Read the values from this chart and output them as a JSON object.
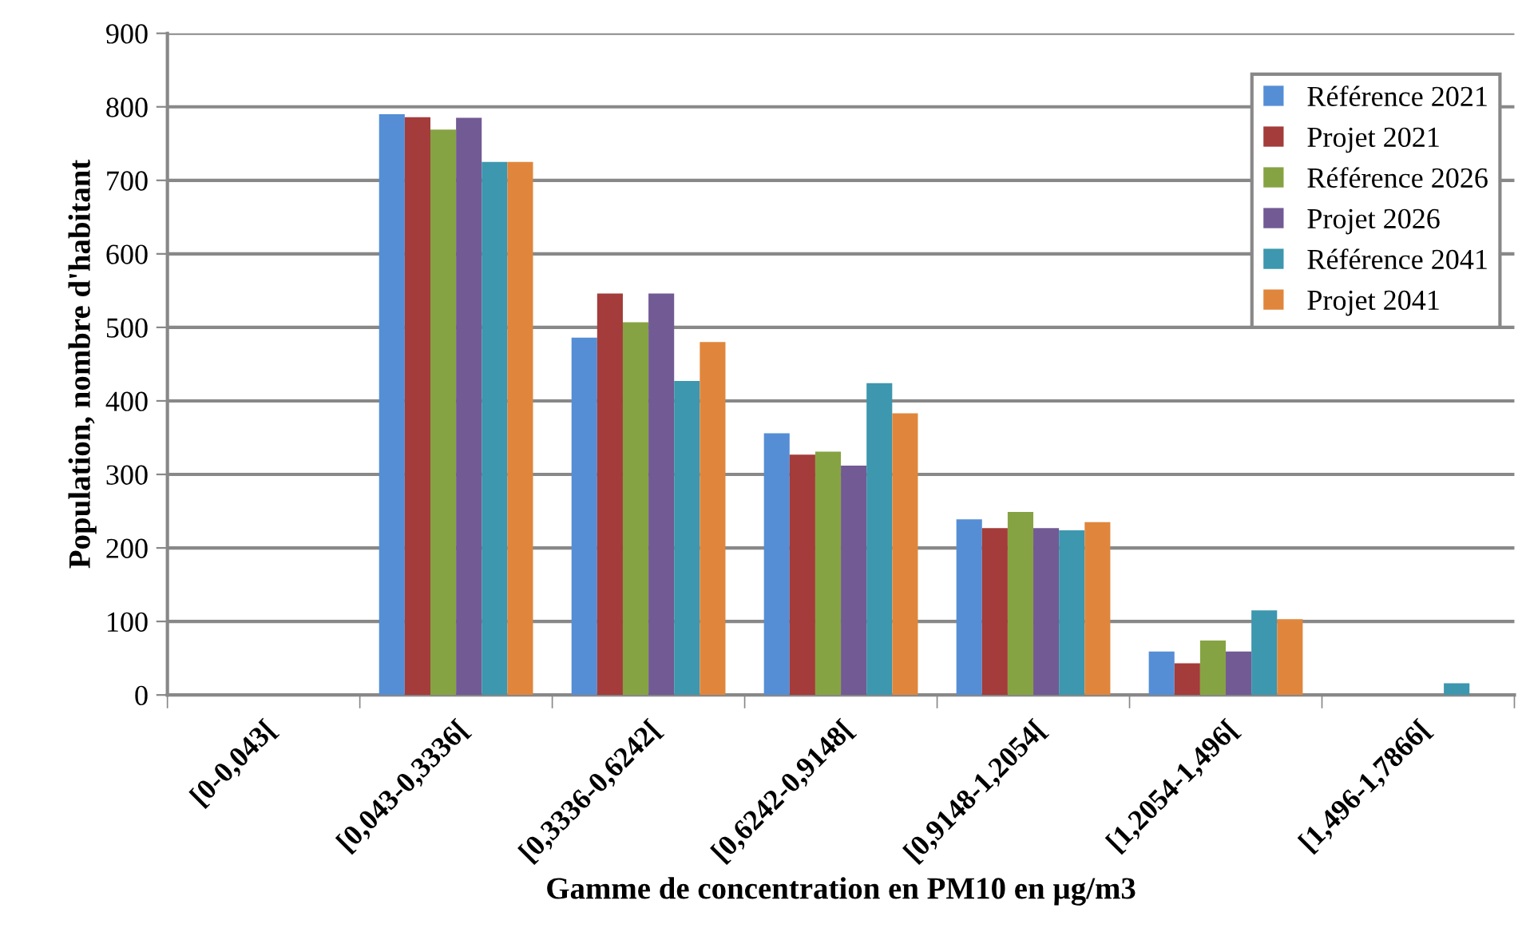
{
  "chart_data": {
    "type": "bar",
    "xlabel": "Gamme de concentration en PM10 en µg/m3",
    "ylabel": "Population, nombre d'habitant",
    "categories": [
      "[0-0,043[",
      "[0,043-0,3336[",
      "[0,3336-0,6242[",
      "[0,6242-0,9148[",
      "[0,9148-1,2054[",
      "[1,2054-1,496[",
      "[1,496-1,7866["
    ],
    "series": [
      {
        "name": "Référence 2021",
        "color": "#558ed5",
        "values": [
          0,
          790,
          486,
          356,
          239,
          59,
          0
        ]
      },
      {
        "name": "Projet 2021",
        "color": "#a33c3a",
        "values": [
          0,
          786,
          546,
          327,
          227,
          43,
          0
        ]
      },
      {
        "name": "Référence 2026",
        "color": "#86a343",
        "values": [
          0,
          769,
          507,
          331,
          249,
          74,
          0
        ]
      },
      {
        "name": "Projet 2026",
        "color": "#725a94",
        "values": [
          0,
          785,
          546,
          312,
          227,
          59,
          0
        ]
      },
      {
        "name": "Référence 2041",
        "color": "#3d97ae",
        "values": [
          0,
          725,
          427,
          424,
          224,
          115,
          16
        ]
      },
      {
        "name": "Projet 2041",
        "color": "#e0863c",
        "values": [
          0,
          725,
          480,
          383,
          235,
          103,
          0
        ]
      }
    ],
    "ylim": [
      0,
      900
    ],
    "yticks": [
      0,
      100,
      200,
      300,
      400,
      500,
      600,
      700,
      800,
      900
    ],
    "grid": "y",
    "legend": "top right"
  }
}
